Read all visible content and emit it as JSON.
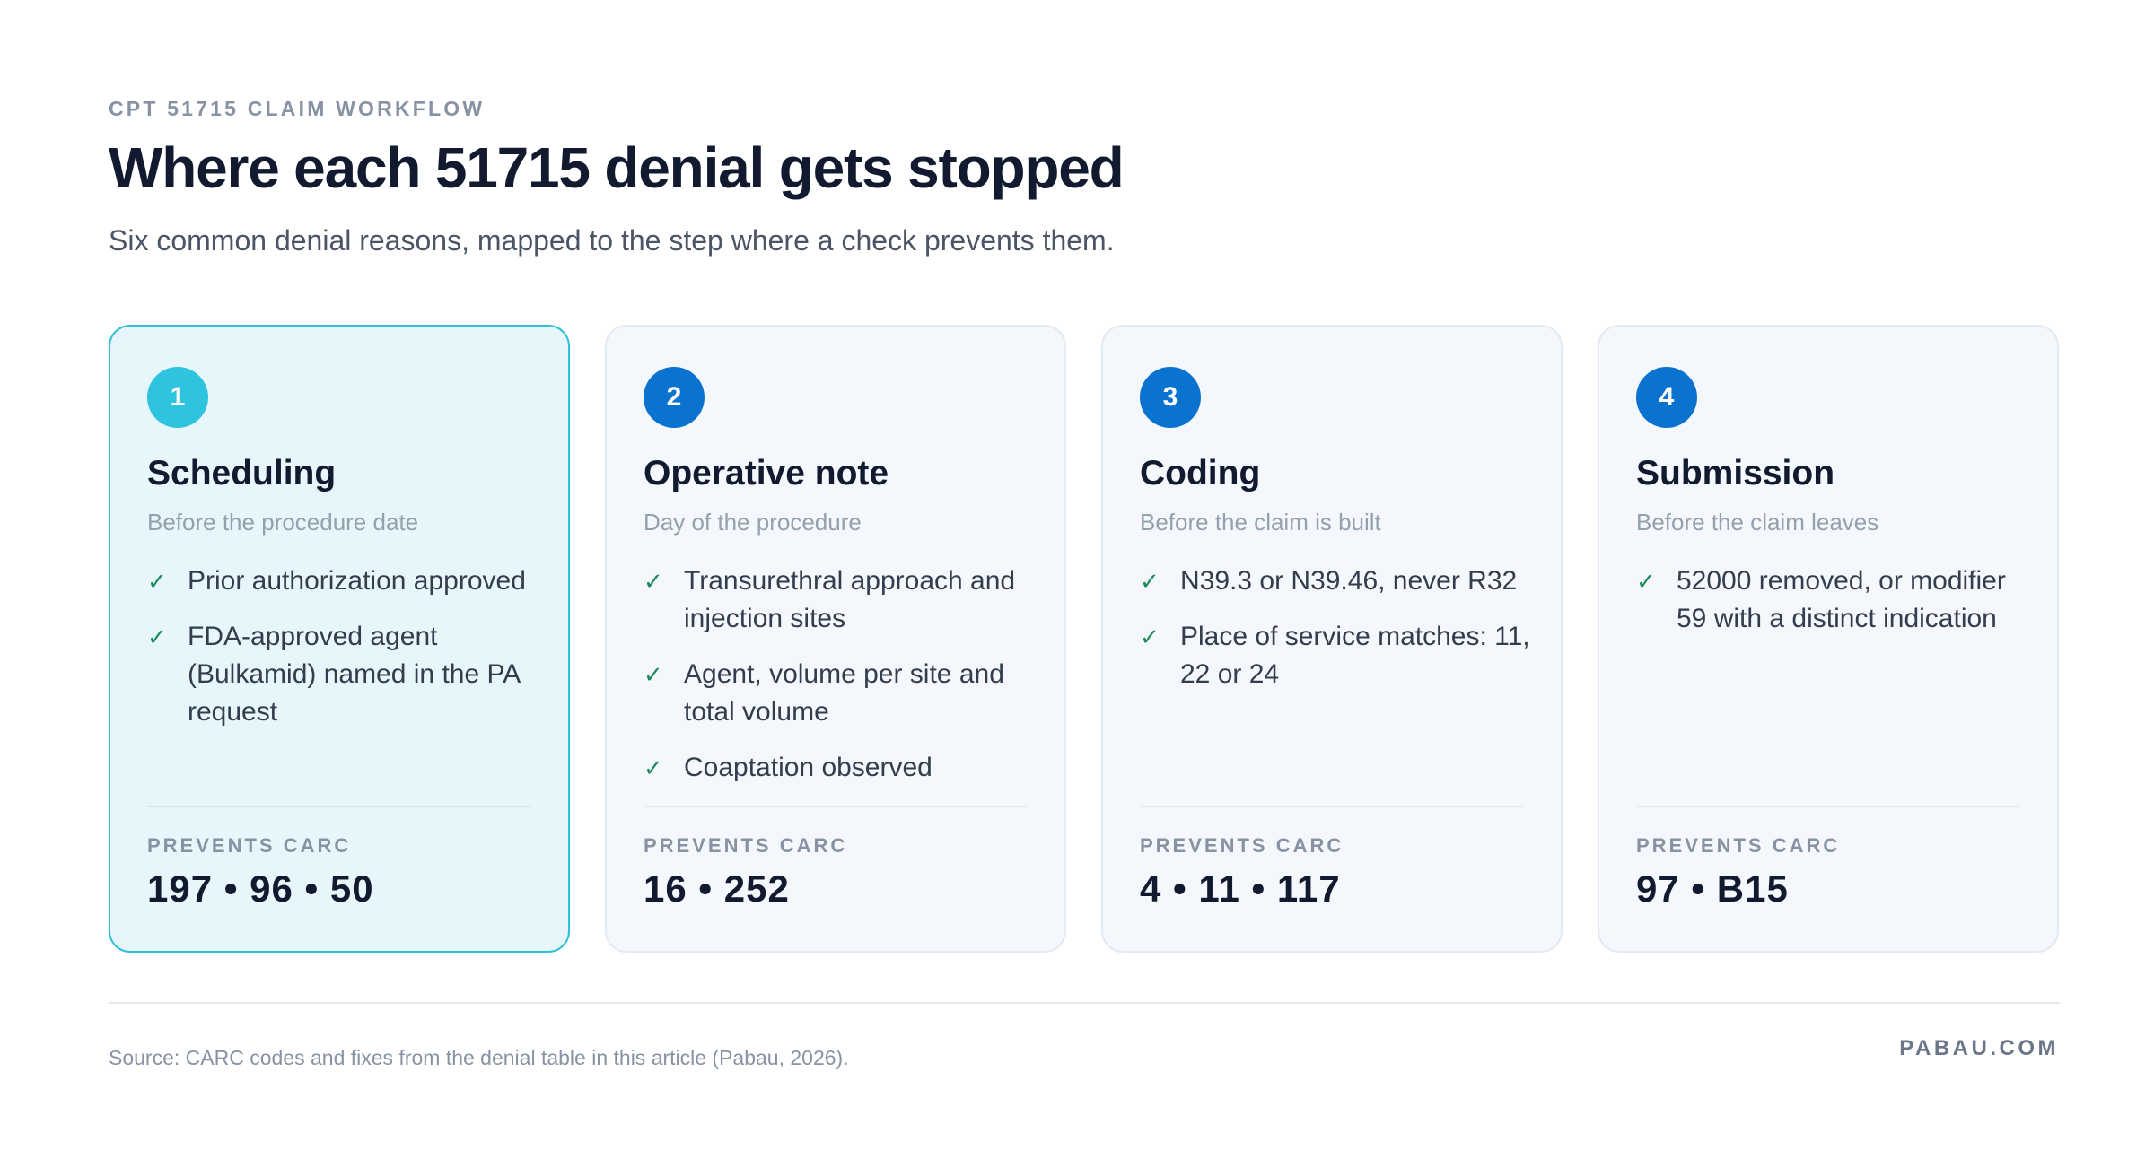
{
  "header": {
    "eyebrow": "CPT 51715 CLAIM WORKFLOW",
    "title": "Where each 51715 denial gets stopped",
    "subtitle": "Six common denial reasons, mapped to the step where a check prevents them."
  },
  "colors": {
    "accent_step1": "#2ec3df",
    "accent_steps": "#0a73cf",
    "highlight_bg": "#e6f6fb",
    "highlight_border": "#2fbfd6",
    "card_bg": "#f4f7fb",
    "check_green": "#1f8a5b"
  },
  "steps": [
    {
      "number": "1",
      "title": "Scheduling",
      "when": "Before the procedure date",
      "checks": [
        "Prior authorization approved",
        "FDA-approved agent (Bulkamid) named in the PA request"
      ],
      "prevents_label": "PREVENTS CARC",
      "codes": "197 • 96 • 50",
      "highlighted": true
    },
    {
      "number": "2",
      "title": "Operative note",
      "when": "Day of the procedure",
      "checks": [
        "Transurethral approach and injection sites",
        "Agent, volume per site and total volume",
        "Coaptation observed"
      ],
      "prevents_label": "PREVENTS CARC",
      "codes": "16 • 252",
      "highlighted": false
    },
    {
      "number": "3",
      "title": "Coding",
      "when": "Before the claim is built",
      "checks": [
        "N39.3 or N39.46, never R32",
        "Place of service matches: 11, 22 or 24"
      ],
      "prevents_label": "PREVENTS CARC",
      "codes": "4 • 11 • 117",
      "highlighted": false
    },
    {
      "number": "4",
      "title": "Submission",
      "when": "Before the claim leaves",
      "checks": [
        "52000 removed, or modifier 59 with a distinct indication"
      ],
      "prevents_label": "PREVENTS CARC",
      "codes": "97 • B15",
      "highlighted": false
    }
  ],
  "check_icon": "checkmark-icon",
  "footer": {
    "source": "Source: CARC codes and fixes from the denial table in this article (Pabau, 2026).",
    "brand": "PABAU.COM"
  }
}
